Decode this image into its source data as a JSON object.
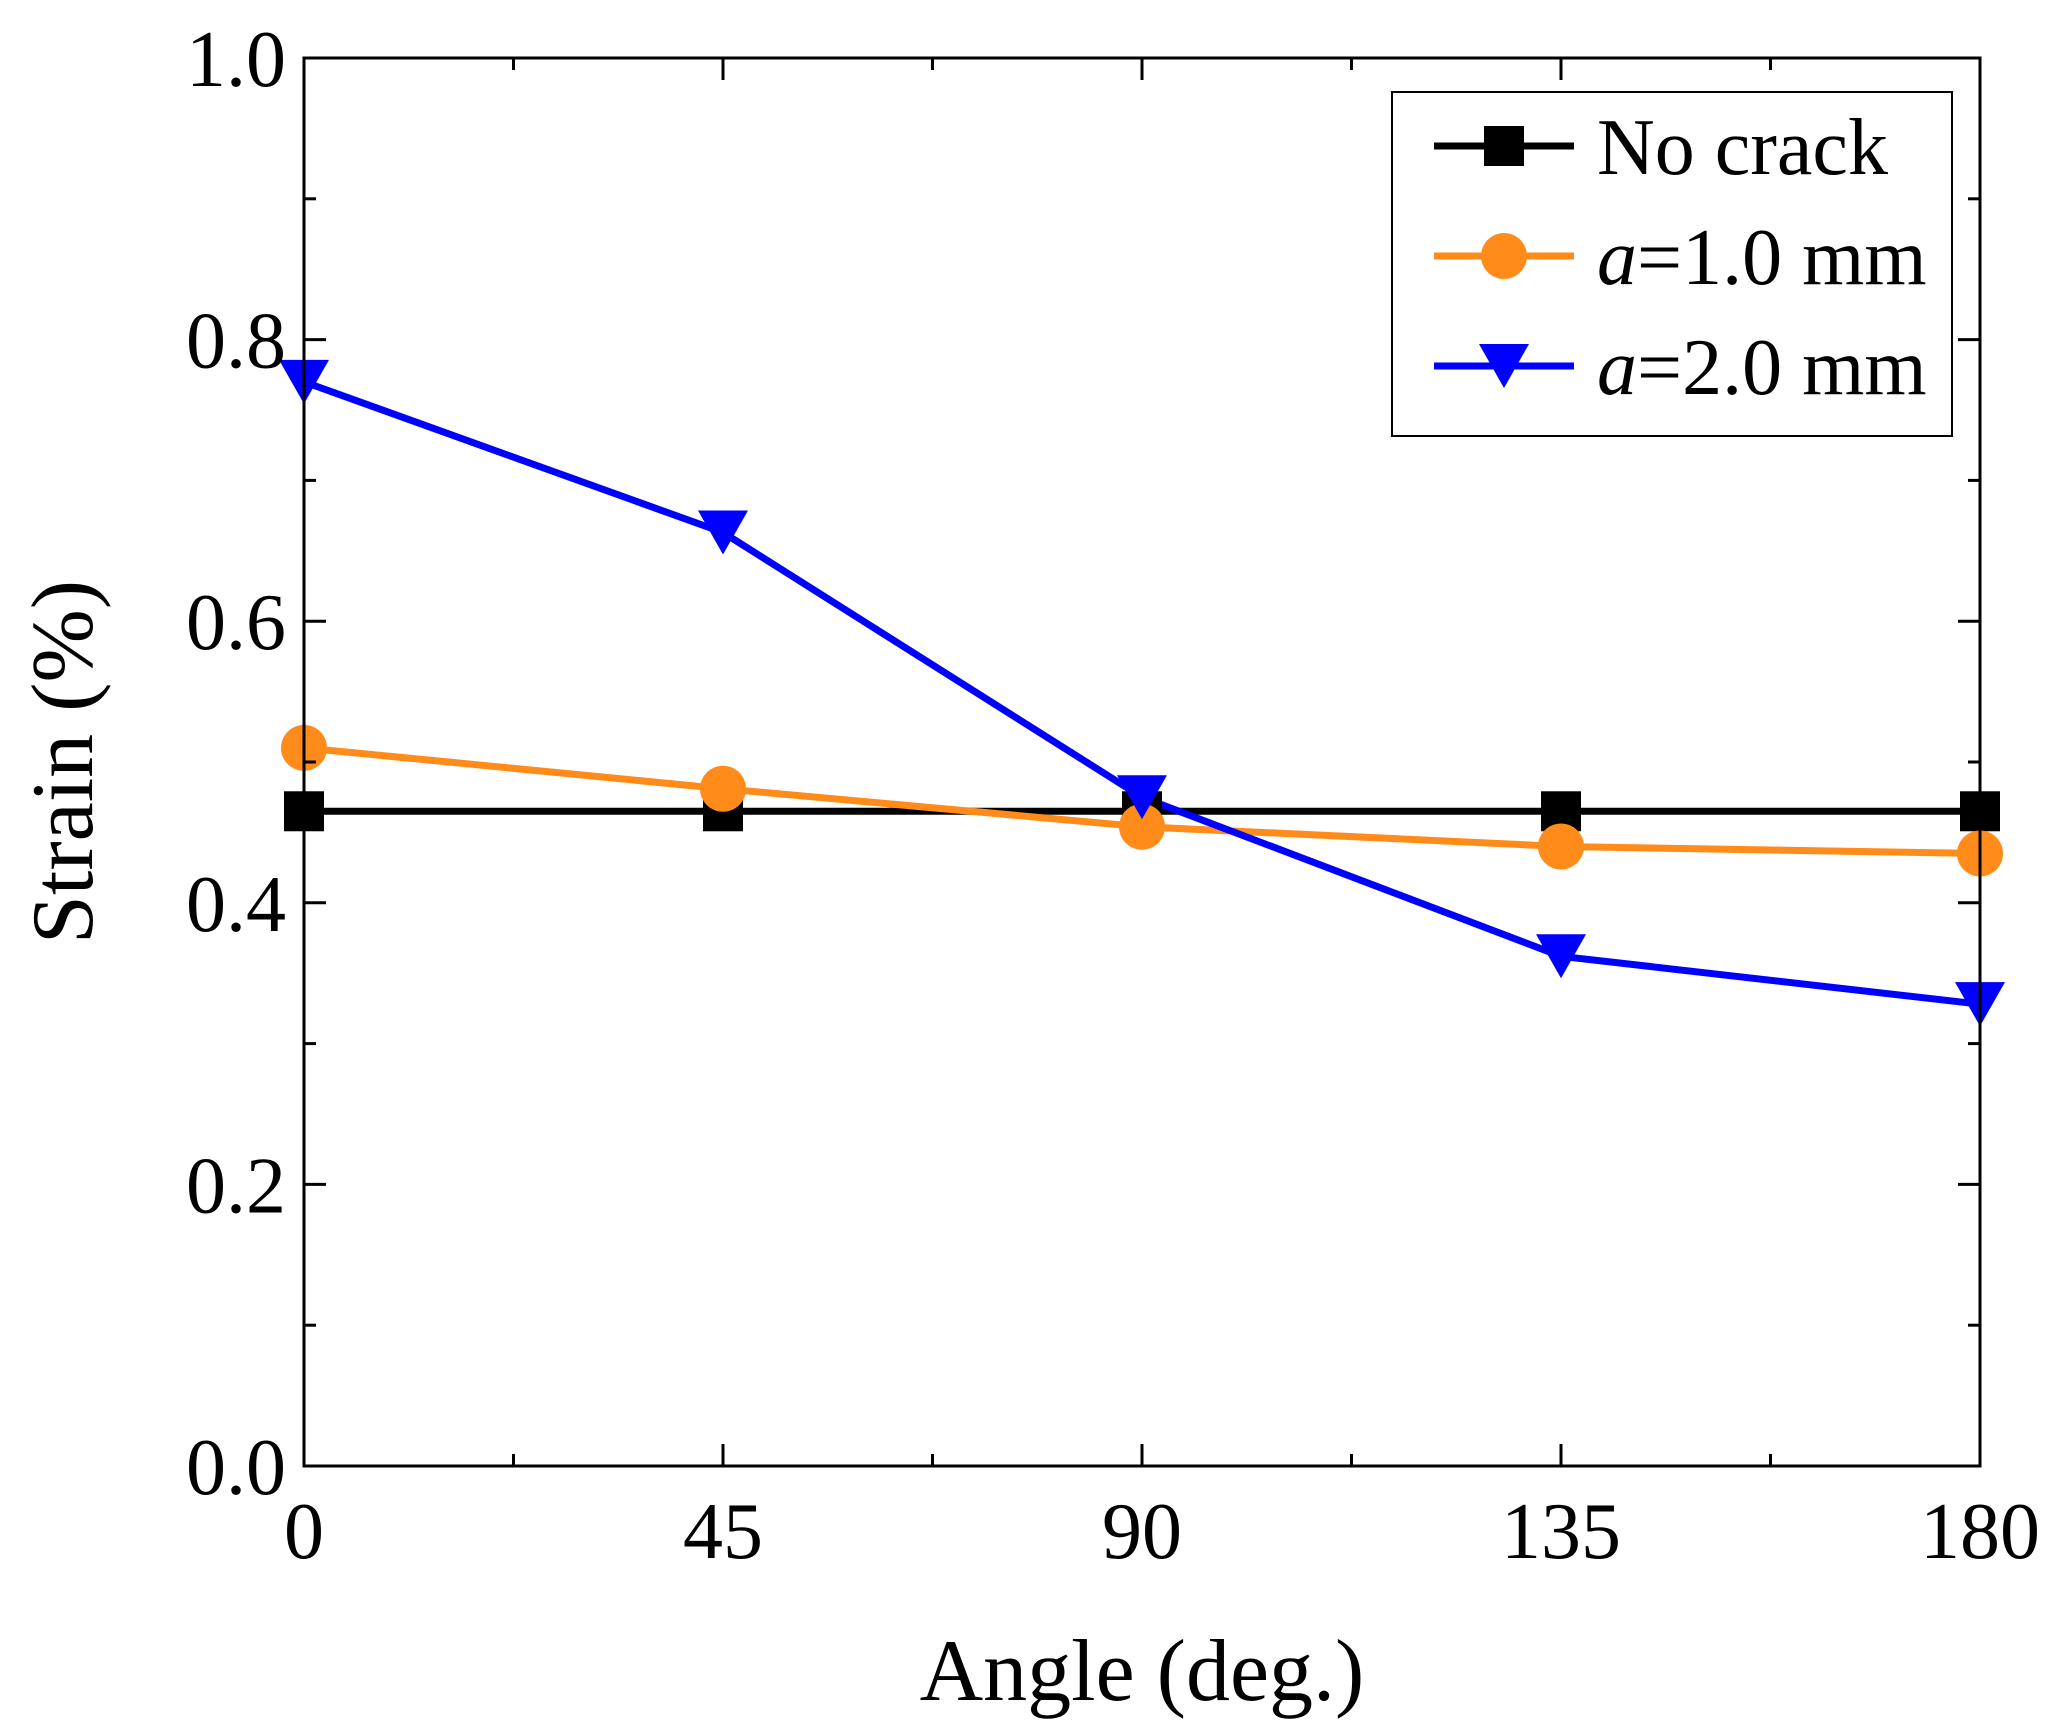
{
  "chart_data": {
    "type": "line",
    "title": "",
    "xlabel": "Angle (deg.)",
    "ylabel": "Strain (%)",
    "xlim": [
      0,
      180
    ],
    "ylim": [
      0.0,
      1.0
    ],
    "xticks": [
      0,
      45,
      90,
      135,
      180
    ],
    "xtick_labels": [
      "0",
      "45",
      "90",
      "135",
      "180"
    ],
    "yticks": [
      0.0,
      0.2,
      0.4,
      0.6,
      0.8,
      1.0
    ],
    "ytick_labels": [
      "0.0",
      "0.2",
      "0.4",
      "0.6",
      "0.8",
      "1.0"
    ],
    "grid": false,
    "legend_position": "top-right",
    "x": [
      0,
      45,
      90,
      135,
      180
    ],
    "series": [
      {
        "name": "No crack",
        "legend_text": "No crack",
        "color": "#000000",
        "marker": "square",
        "values": [
          0.465,
          0.465,
          0.465,
          0.465,
          0.465
        ]
      },
      {
        "name": "a=1.0 mm",
        "legend_var": "a",
        "legend_text": "=1.0 mm",
        "color": "#ff8c1a",
        "marker": "circle",
        "values": [
          0.51,
          0.481,
          0.454,
          0.44,
          0.435
        ]
      },
      {
        "name": "a=2.0 mm",
        "legend_var": "a",
        "legend_text": "=2.0 mm",
        "color": "#0000ff",
        "marker": "triangle-down",
        "values": [
          0.77,
          0.663,
          0.475,
          0.362,
          0.328
        ]
      }
    ]
  }
}
